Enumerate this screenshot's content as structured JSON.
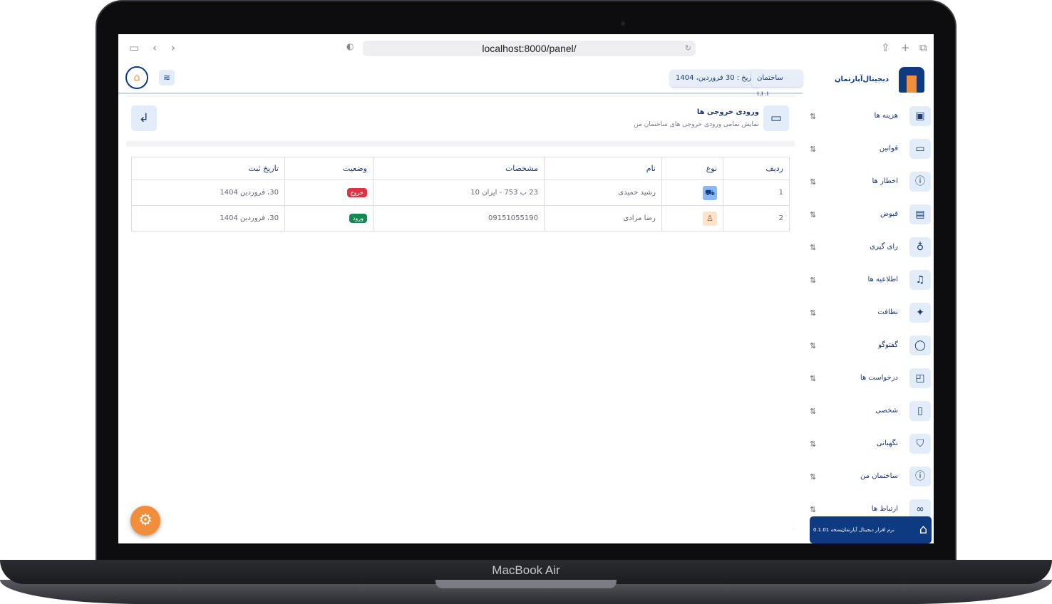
{
  "device": "MacBook Air",
  "browser": {
    "url": "localhost:8000/panel/"
  },
  "header": {
    "building": "ساختمان ارایا",
    "date": "تاریخ : 30 فروردین، 1404",
    "logo_text": "دیجیتال‌آپارتمان"
  },
  "page": {
    "title": "ورودی خروجی ها",
    "subtitle": "نمایش تمامی ورودی خروجی های ساختمان من"
  },
  "table": {
    "headers": [
      "ردیف",
      "نوع",
      "نام",
      "مشخصات",
      "وضعیت",
      "تاریخ ثبت"
    ],
    "rows": [
      {
        "index": "1",
        "type": "car",
        "name": "رشید حمیدی",
        "details": "23 ب 753 - ایران 10",
        "status": "خروج",
        "status_color": "#dc3545",
        "date": "30، فروردین 1404"
      },
      {
        "index": "2",
        "type": "person",
        "name": "رضا مرادی",
        "details": "09151055190",
        "status": "ورود",
        "status_color": "#198754",
        "date": "30، فروردین 1404"
      }
    ]
  },
  "sidebar": {
    "items": [
      {
        "label": "هزینه ها",
        "icon": "money-icon"
      },
      {
        "label": "قوانین",
        "icon": "monitor-icon"
      },
      {
        "label": "اخطار ها",
        "icon": "info-icon"
      },
      {
        "label": "قبوض",
        "icon": "receipt-icon"
      },
      {
        "label": "رای گیری",
        "icon": "award-icon"
      },
      {
        "label": "اطلاعیه ها",
        "icon": "bell-icon"
      },
      {
        "label": "نظافت",
        "icon": "sparkle-icon"
      },
      {
        "label": "گفتوگو",
        "icon": "chat-icon"
      },
      {
        "label": "درخواست ها",
        "icon": "note-icon"
      },
      {
        "label": "شخصی",
        "icon": "phone-icon"
      },
      {
        "label": "نگهبانی",
        "icon": "shield-icon"
      },
      {
        "label": "ساختمان من",
        "icon": "info-icon"
      },
      {
        "label": "ارتباط ها",
        "icon": "link-icon"
      }
    ],
    "footer": {
      "app": "نرم افزار دیجیتال آپارتمان",
      "version": "نسخه 0.1.01"
    }
  },
  "colors": {
    "primary": "#0d3a80",
    "accent": "#f28d3b"
  }
}
